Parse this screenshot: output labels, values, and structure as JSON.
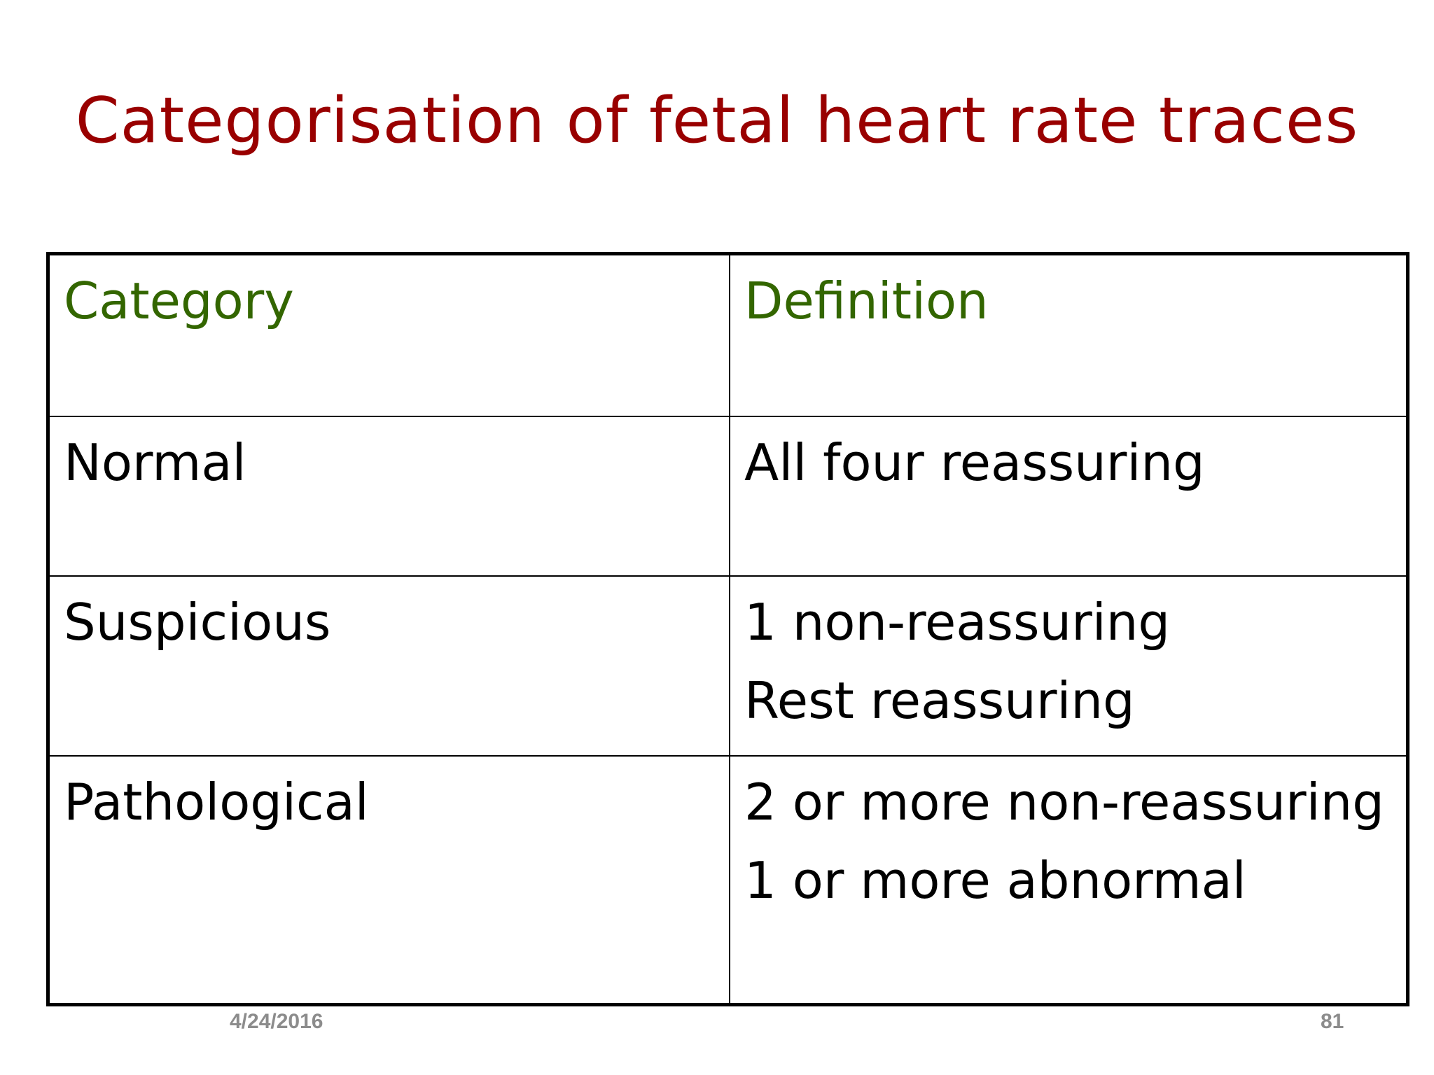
{
  "slide": {
    "title": "Categorisation of fetal heart rate traces",
    "title_color": "#990000"
  },
  "table": {
    "header_color": "#336600",
    "headers": [
      "Category",
      "Definition"
    ],
    "rows": [
      {
        "category": "Normal",
        "definition": [
          "All four reassuring"
        ]
      },
      {
        "category": "Suspicious",
        "definition": [
          "1 non-reassuring",
          "Rest reassuring"
        ]
      },
      {
        "category": "Pathological",
        "definition": [
          "2 or more non-reassuring",
          "1 or more abnormal"
        ]
      }
    ]
  },
  "footer": {
    "date": "4/24/2016",
    "page_number": "81"
  }
}
